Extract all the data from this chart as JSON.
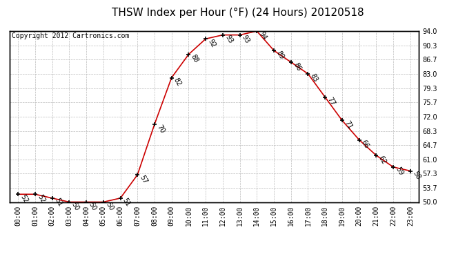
{
  "title": "THSW Index per Hour (°F) (24 Hours) 20120518",
  "copyright": "Copyright 2012 Cartronics.com",
  "hours": [
    "00:00",
    "01:00",
    "02:00",
    "03:00",
    "04:00",
    "05:00",
    "06:00",
    "07:00",
    "08:00",
    "09:00",
    "10:00",
    "11:00",
    "12:00",
    "13:00",
    "14:00",
    "15:00",
    "16:00",
    "17:00",
    "18:00",
    "19:00",
    "20:00",
    "21:00",
    "22:00",
    "23:00"
  ],
  "values": [
    52,
    52,
    51,
    50,
    50,
    50,
    51,
    57,
    70,
    82,
    88,
    92,
    93,
    93,
    94,
    89,
    86,
    83,
    77,
    71,
    66,
    62,
    59,
    58
  ],
  "line_color": "#cc0000",
  "marker_color": "#000000",
  "bg_color": "#ffffff",
  "grid_color": "#bbbbbb",
  "ylim": [
    50.0,
    94.0
  ],
  "yticks": [
    50.0,
    53.7,
    57.3,
    61.0,
    64.7,
    68.3,
    72.0,
    75.7,
    79.3,
    83.0,
    86.7,
    90.3,
    94.0
  ],
  "title_fontsize": 11,
  "label_fontsize": 7,
  "copyright_fontsize": 7,
  "annot_fontsize": 7
}
